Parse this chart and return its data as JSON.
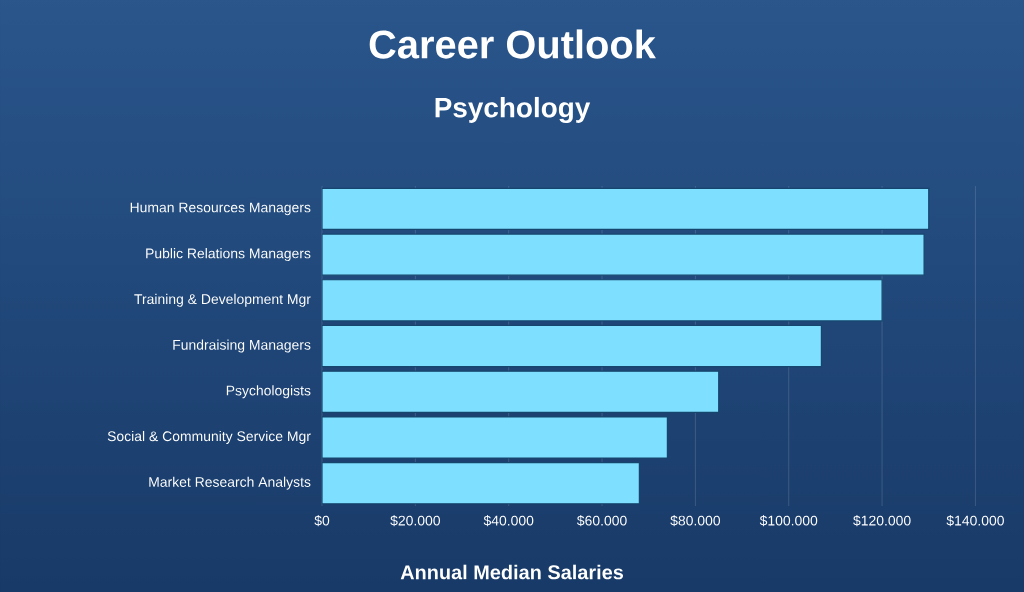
{
  "chart_data": {
    "type": "bar",
    "orientation": "horizontal",
    "title": "Career Outlook",
    "subtitle": "Psychology",
    "xlabel": "Annual Median Salaries",
    "categories": [
      "Human Resources Managers",
      "Public Relations Managers",
      "Training & Development Mgr",
      "Fundraising Managers",
      "Psychologists",
      "Social & Community Service Mgr",
      "Market Research Analysts"
    ],
    "values": [
      130000,
      129000,
      120000,
      107000,
      85000,
      74000,
      68000
    ],
    "color": "#7fdfff",
    "xlim": [
      0,
      140000
    ],
    "xticks": [
      {
        "value": 0,
        "label": "$0"
      },
      {
        "value": 20000,
        "label": "$20.000"
      },
      {
        "value": 40000,
        "label": "$40.000"
      },
      {
        "value": 60000,
        "label": "$60.000"
      },
      {
        "value": 80000,
        "label": "$80.000"
      },
      {
        "value": 100000,
        "label": "$100.000"
      },
      {
        "value": 120000,
        "label": "$120.000"
      },
      {
        "value": 140000,
        "label": "$140.000"
      }
    ],
    "grid": "x"
  }
}
